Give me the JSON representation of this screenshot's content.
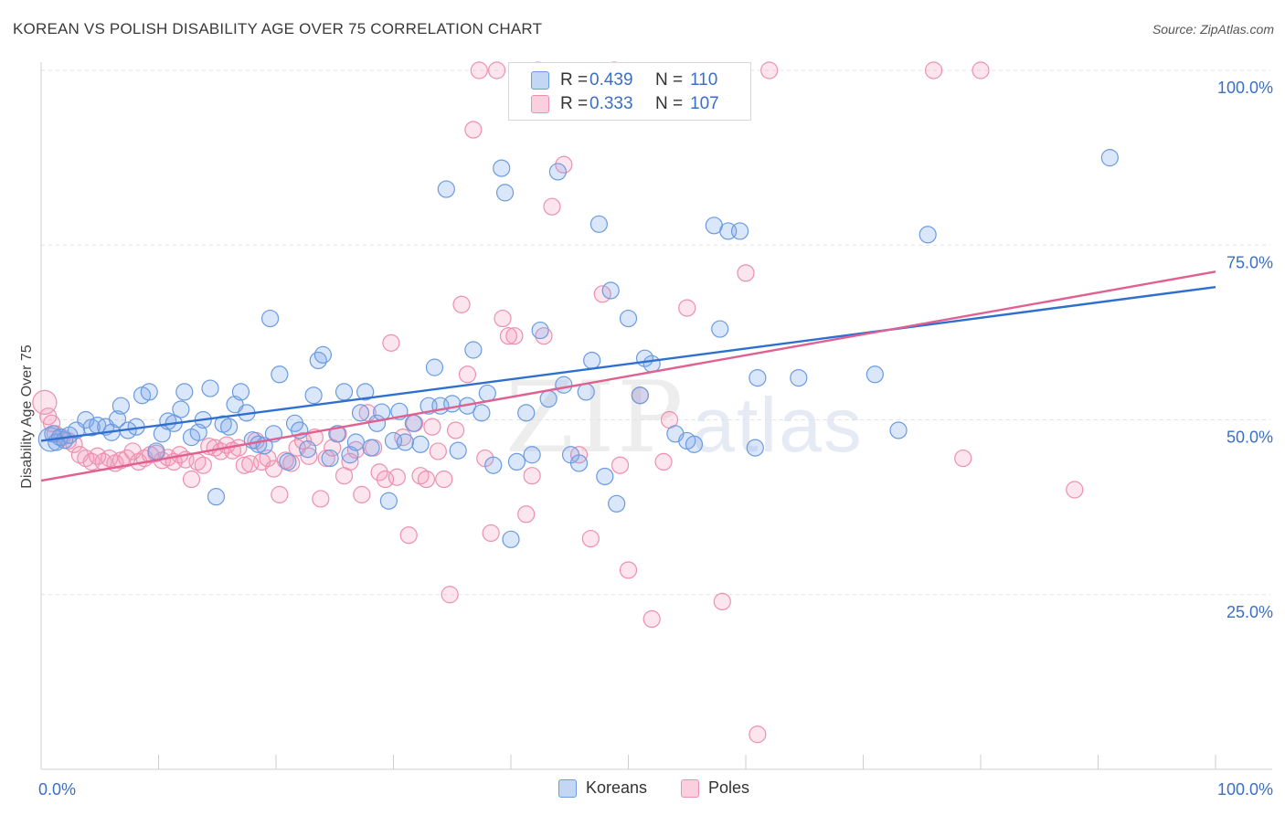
{
  "title": "KOREAN VS POLISH DISABILITY AGE OVER 75 CORRELATION CHART",
  "source": "Source: ZipAtlas.com",
  "watermark": {
    "zip": "ZIP",
    "atlas": "atlas"
  },
  "colors": {
    "koreans_fill": "rgba(122,167,232,0.28)",
    "koreans_stroke": "#6b9be0",
    "koreans_line": "#2f6fcf",
    "poles_fill": "rgba(244,150,182,0.25)",
    "poles_stroke": "#ee8fb0",
    "poles_line": "#e0608f",
    "tick_label": "#3b6fc6",
    "grid": "#e3e3e3"
  },
  "legend_top": [
    {
      "swatch": "koreans",
      "r_label": "R =",
      "r_value": "0.439",
      "n_label": "N =",
      "n_value": "110"
    },
    {
      "swatch": "poles",
      "r_label": "R =",
      "r_value": "0.333",
      "n_label": "N =",
      "n_value": "107"
    }
  ],
  "legend_bottom": [
    "Koreans",
    "Poles"
  ],
  "chart_data": {
    "type": "scatter",
    "title": "KOREAN VS POLISH DISABILITY AGE OVER 75 CORRELATION CHART",
    "xlabel": "",
    "ylabel": "Disability Age Over 75",
    "xlim": [
      0,
      100
    ],
    "ylim": [
      0,
      100
    ],
    "x_tick_labels": [
      "0.0%",
      "100.0%"
    ],
    "y_tick_labels": [
      "25.0%",
      "50.0%",
      "75.0%",
      "100.0%"
    ],
    "y_ticks": [
      25,
      50,
      75,
      100
    ],
    "grid": true,
    "legend": "top-center",
    "series": [
      {
        "name": "Koreans",
        "r": 0.439,
        "n": 110,
        "trend": {
          "x": [
            0,
            100
          ],
          "y": [
            47.0,
            69.0
          ]
        },
        "points": [
          [
            0.8,
            47.2
          ],
          [
            1.0,
            48.0
          ],
          [
            1.3,
            46.8
          ],
          [
            1.6,
            47.5
          ],
          [
            2.0,
            47.1
          ],
          [
            2.4,
            47.8
          ],
          [
            3.0,
            48.5
          ],
          [
            3.8,
            50.0
          ],
          [
            4.3,
            48.9
          ],
          [
            4.8,
            49.2
          ],
          [
            5.5,
            49.0
          ],
          [
            6.0,
            48.2
          ],
          [
            6.5,
            50.1
          ],
          [
            6.8,
            52.0
          ],
          [
            7.4,
            48.5
          ],
          [
            8.1,
            49.0
          ],
          [
            8.6,
            53.5
          ],
          [
            9.2,
            54.0
          ],
          [
            9.8,
            45.5
          ],
          [
            10.3,
            48.0
          ],
          [
            10.8,
            49.8
          ],
          [
            11.3,
            49.5
          ],
          [
            11.9,
            51.5
          ],
          [
            12.2,
            54.0
          ],
          [
            12.8,
            47.5
          ],
          [
            13.4,
            48.2
          ],
          [
            13.8,
            50.0
          ],
          [
            14.4,
            54.5
          ],
          [
            14.9,
            39.0
          ],
          [
            15.5,
            49.4
          ],
          [
            16.0,
            49.0
          ],
          [
            16.5,
            52.2
          ],
          [
            17.0,
            54.0
          ],
          [
            17.5,
            51.0
          ],
          [
            18.0,
            47.1
          ],
          [
            18.5,
            46.5
          ],
          [
            19.0,
            46.3
          ],
          [
            19.5,
            64.5
          ],
          [
            19.8,
            48.0
          ],
          [
            20.3,
            56.5
          ],
          [
            21.0,
            44.0
          ],
          [
            21.6,
            49.5
          ],
          [
            22.0,
            48.5
          ],
          [
            22.7,
            45.8
          ],
          [
            23.2,
            53.5
          ],
          [
            23.6,
            58.5
          ],
          [
            24.0,
            59.3
          ],
          [
            24.6,
            44.5
          ],
          [
            25.2,
            48.0
          ],
          [
            25.8,
            54.0
          ],
          [
            26.3,
            45.0
          ],
          [
            26.8,
            46.8
          ],
          [
            27.2,
            51.0
          ],
          [
            27.6,
            54.0
          ],
          [
            28.1,
            46.0
          ],
          [
            28.6,
            49.5
          ],
          [
            29.0,
            51.1
          ],
          [
            29.6,
            38.4
          ],
          [
            30.0,
            47.0
          ],
          [
            30.5,
            51.2
          ],
          [
            31.0,
            46.8
          ],
          [
            31.7,
            49.5
          ],
          [
            32.3,
            46.5
          ],
          [
            33.0,
            52.0
          ],
          [
            33.5,
            57.5
          ],
          [
            34.0,
            52.0
          ],
          [
            34.5,
            83.0
          ],
          [
            35.0,
            52.3
          ],
          [
            35.5,
            45.6
          ],
          [
            36.3,
            52.0
          ],
          [
            36.8,
            60.0
          ],
          [
            37.5,
            51.0
          ],
          [
            38.0,
            53.8
          ],
          [
            38.5,
            43.5
          ],
          [
            39.2,
            86.0
          ],
          [
            39.5,
            82.5
          ],
          [
            40.0,
            32.9
          ],
          [
            40.5,
            44.0
          ],
          [
            41.3,
            51.0
          ],
          [
            41.8,
            45.0
          ],
          [
            42.5,
            62.8
          ],
          [
            43.2,
            53.0
          ],
          [
            44.0,
            85.5
          ],
          [
            44.5,
            55.0
          ],
          [
            45.1,
            45.0
          ],
          [
            45.8,
            43.8
          ],
          [
            46.4,
            54.0
          ],
          [
            46.9,
            58.5
          ],
          [
            47.5,
            78.0
          ],
          [
            48.0,
            41.9
          ],
          [
            48.5,
            68.5
          ],
          [
            49.0,
            38.0
          ],
          [
            50.0,
            64.5
          ],
          [
            51.0,
            53.5
          ],
          [
            51.4,
            58.8
          ],
          [
            52.0,
            58.0
          ],
          [
            54.0,
            48.0
          ],
          [
            55.0,
            47.0
          ],
          [
            55.6,
            46.5
          ],
          [
            57.3,
            77.8
          ],
          [
            57.8,
            63.0
          ],
          [
            58.5,
            77.0
          ],
          [
            59.5,
            77.0
          ],
          [
            60.8,
            46.0
          ],
          [
            61.0,
            56.0
          ],
          [
            64.5,
            56.0
          ],
          [
            71.0,
            56.5
          ],
          [
            73.0,
            48.5
          ],
          [
            75.5,
            76.5
          ],
          [
            91.0,
            87.5
          ]
        ]
      },
      {
        "name": "Poles",
        "r": 0.333,
        "n": 107,
        "trend": {
          "x": [
            0,
            100
          ],
          "y": [
            41.3,
            71.2
          ]
        },
        "points": [
          [
            0.3,
            52.5
          ],
          [
            0.6,
            50.5
          ],
          [
            0.9,
            49.5
          ],
          [
            1.2,
            48.0
          ],
          [
            1.8,
            47.5
          ],
          [
            2.3,
            47.0
          ],
          [
            2.8,
            46.5
          ],
          [
            3.3,
            45.0
          ],
          [
            3.8,
            44.5
          ],
          [
            4.3,
            44.0
          ],
          [
            4.8,
            44.8
          ],
          [
            5.3,
            44.0
          ],
          [
            5.8,
            44.5
          ],
          [
            6.3,
            43.8
          ],
          [
            6.8,
            44.2
          ],
          [
            7.3,
            44.5
          ],
          [
            7.8,
            45.5
          ],
          [
            8.3,
            44.0
          ],
          [
            8.8,
            44.5
          ],
          [
            9.3,
            45.0
          ],
          [
            9.8,
            45.2
          ],
          [
            10.3,
            44.2
          ],
          [
            10.8,
            44.6
          ],
          [
            11.3,
            44.0
          ],
          [
            11.8,
            45.0
          ],
          [
            12.3,
            44.3
          ],
          [
            12.8,
            41.5
          ],
          [
            13.3,
            44.0
          ],
          [
            13.8,
            43.5
          ],
          [
            14.3,
            46.2
          ],
          [
            14.8,
            46.0
          ],
          [
            15.3,
            45.5
          ],
          [
            15.8,
            46.4
          ],
          [
            16.3,
            45.6
          ],
          [
            16.8,
            46.0
          ],
          [
            17.3,
            43.5
          ],
          [
            17.8,
            43.7
          ],
          [
            18.3,
            47.0
          ],
          [
            18.8,
            44.0
          ],
          [
            19.3,
            44.5
          ],
          [
            19.8,
            43.0
          ],
          [
            20.3,
            39.3
          ],
          [
            20.8,
            44.2
          ],
          [
            21.3,
            43.8
          ],
          [
            21.8,
            46.0
          ],
          [
            22.3,
            47.0
          ],
          [
            22.8,
            44.8
          ],
          [
            23.3,
            47.5
          ],
          [
            23.8,
            38.7
          ],
          [
            24.3,
            44.5
          ],
          [
            24.8,
            46.0
          ],
          [
            25.3,
            48.0
          ],
          [
            25.8,
            42.0
          ],
          [
            26.3,
            44.0
          ],
          [
            26.8,
            45.7
          ],
          [
            27.3,
            39.3
          ],
          [
            27.8,
            51.0
          ],
          [
            28.3,
            46.0
          ],
          [
            28.8,
            42.5
          ],
          [
            29.3,
            41.5
          ],
          [
            29.8,
            61.0
          ],
          [
            30.3,
            41.8
          ],
          [
            30.8,
            47.5
          ],
          [
            31.3,
            33.5
          ],
          [
            31.8,
            49.5
          ],
          [
            32.3,
            42.0
          ],
          [
            32.8,
            41.5
          ],
          [
            33.3,
            49.0
          ],
          [
            33.8,
            45.5
          ],
          [
            34.3,
            41.5
          ],
          [
            34.8,
            25.0
          ],
          [
            35.3,
            48.5
          ],
          [
            35.8,
            66.5
          ],
          [
            36.3,
            56.5
          ],
          [
            36.8,
            91.5
          ],
          [
            37.3,
            100.0
          ],
          [
            37.8,
            44.5
          ],
          [
            38.3,
            33.8
          ],
          [
            38.8,
            100.0
          ],
          [
            39.3,
            64.5
          ],
          [
            39.8,
            62.0
          ],
          [
            40.3,
            62.0
          ],
          [
            41.3,
            36.5
          ],
          [
            41.8,
            42.0
          ],
          [
            42.3,
            100.0
          ],
          [
            42.8,
            62.0
          ],
          [
            43.5,
            80.5
          ],
          [
            44.5,
            86.5
          ],
          [
            45.8,
            45.0
          ],
          [
            46.8,
            33.0
          ],
          [
            47.8,
            68.0
          ],
          [
            48.8,
            100.0
          ],
          [
            49.3,
            43.5
          ],
          [
            50.0,
            28.5
          ],
          [
            51.0,
            53.5
          ],
          [
            52.0,
            21.5
          ],
          [
            53.0,
            44.0
          ],
          [
            53.5,
            50.0
          ],
          [
            55.0,
            66.0
          ],
          [
            58.0,
            24.0
          ],
          [
            60.0,
            71.0
          ],
          [
            61.0,
            5.0
          ],
          [
            62.0,
            100.0
          ],
          [
            76.0,
            100.0
          ],
          [
            80.0,
            100.0
          ],
          [
            78.5,
            44.5
          ],
          [
            88.0,
            40.0
          ]
        ]
      }
    ]
  }
}
